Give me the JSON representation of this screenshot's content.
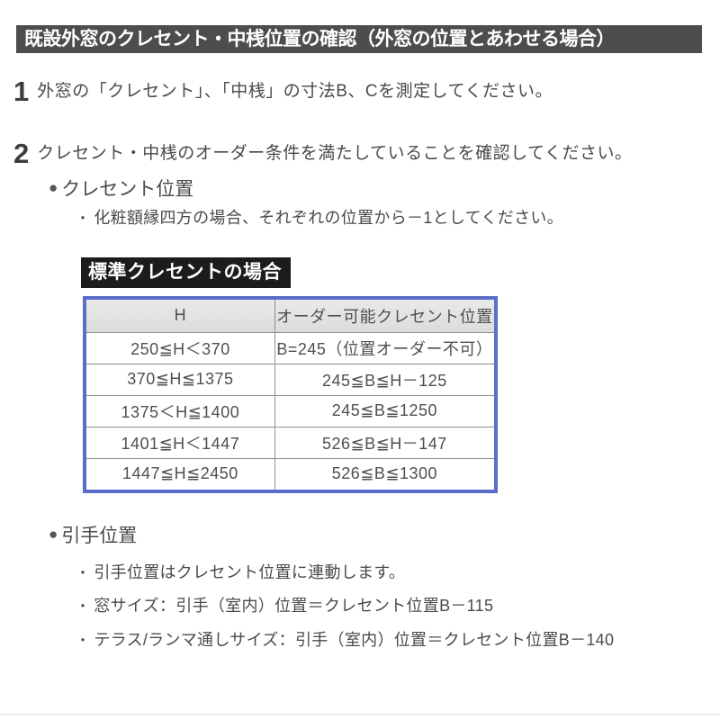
{
  "title_bar": {
    "text": "既設外窓のクレセント・中桟位置の確認（外窓の位置とあわせる場合）"
  },
  "steps": [
    {
      "number": "1",
      "text": "外窓の「クレセント」、「中桟」の寸法B、Cを測定してください。"
    },
    {
      "number": "2",
      "text": "クレセント・中桟のオーダー条件を満たしていることを確認してください。"
    }
  ],
  "marks": {
    "bullet": "●",
    "dot": "・"
  },
  "crescent_section": {
    "heading": "クレセント位置",
    "note": "化粧額縁四方の場合、それぞれの位置から－1としてください。",
    "table_title": "標準クレセントの場合",
    "table": {
      "headers": [
        "H",
        "オーダー可能クレセント位置"
      ],
      "rows": [
        [
          "250≦H＜370",
          "B=245（位置オーダー不可）"
        ],
        [
          "370≦H≦1375",
          "245≦B≦H－125"
        ],
        [
          "1375＜H≦1400",
          "245≦B≦1250"
        ],
        [
          "1401≦H＜1447",
          "526≦B≦H－147"
        ],
        [
          "1447≦H≦2450",
          "526≦B≦1300"
        ]
      ]
    }
  },
  "handle_section": {
    "heading": "引手位置",
    "notes": [
      "引手位置はクレセント位置に連動します。",
      "窓サイズ：引手（室内）位置＝クレセント位置B－115",
      "テラス/ランマ通しサイズ：引手（室内）位置＝クレセント位置B－140"
    ]
  },
  "colors": {
    "title_bar_bg": "#4d4d4d",
    "table_title_bg": "#1c1c1c",
    "table_border_blue": "#5a6ec8",
    "table_header_bg": "#e2e2e2",
    "body_text": "#4a4a4a"
  }
}
